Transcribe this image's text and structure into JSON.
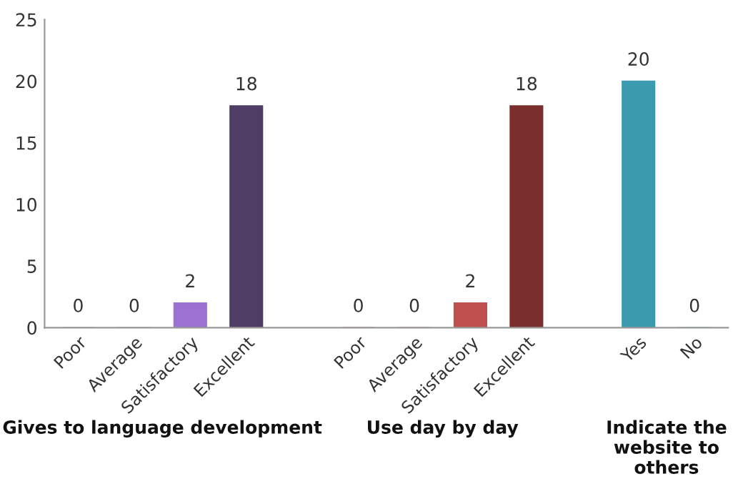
{
  "chart_data": {
    "type": "bar",
    "categories": [
      "Poor",
      "Average",
      "Satisfactory",
      "Excellent",
      null,
      "Poor",
      "Average",
      "Satisfactory",
      "Excellent",
      null,
      "Yes",
      "No"
    ],
    "values": [
      0,
      0,
      2,
      18,
      null,
      0,
      0,
      2,
      18,
      null,
      20,
      0
    ],
    "colors": [
      "#9b72d2",
      "#9b72d2",
      "#9b72d2",
      "#4f3d66",
      null,
      "#c0504d",
      "#c0504d",
      "#c0504d",
      "#7b2f2d",
      null,
      "#3a9aae",
      "#3a9aae"
    ],
    "ylim": [
      0,
      25
    ],
    "yticks": [
      0,
      5,
      10,
      15,
      20,
      25
    ],
    "grid": false,
    "data_labels": true,
    "annotations": [
      "Gives to language development",
      "Use day by day",
      "Indicate the website to others"
    ]
  }
}
